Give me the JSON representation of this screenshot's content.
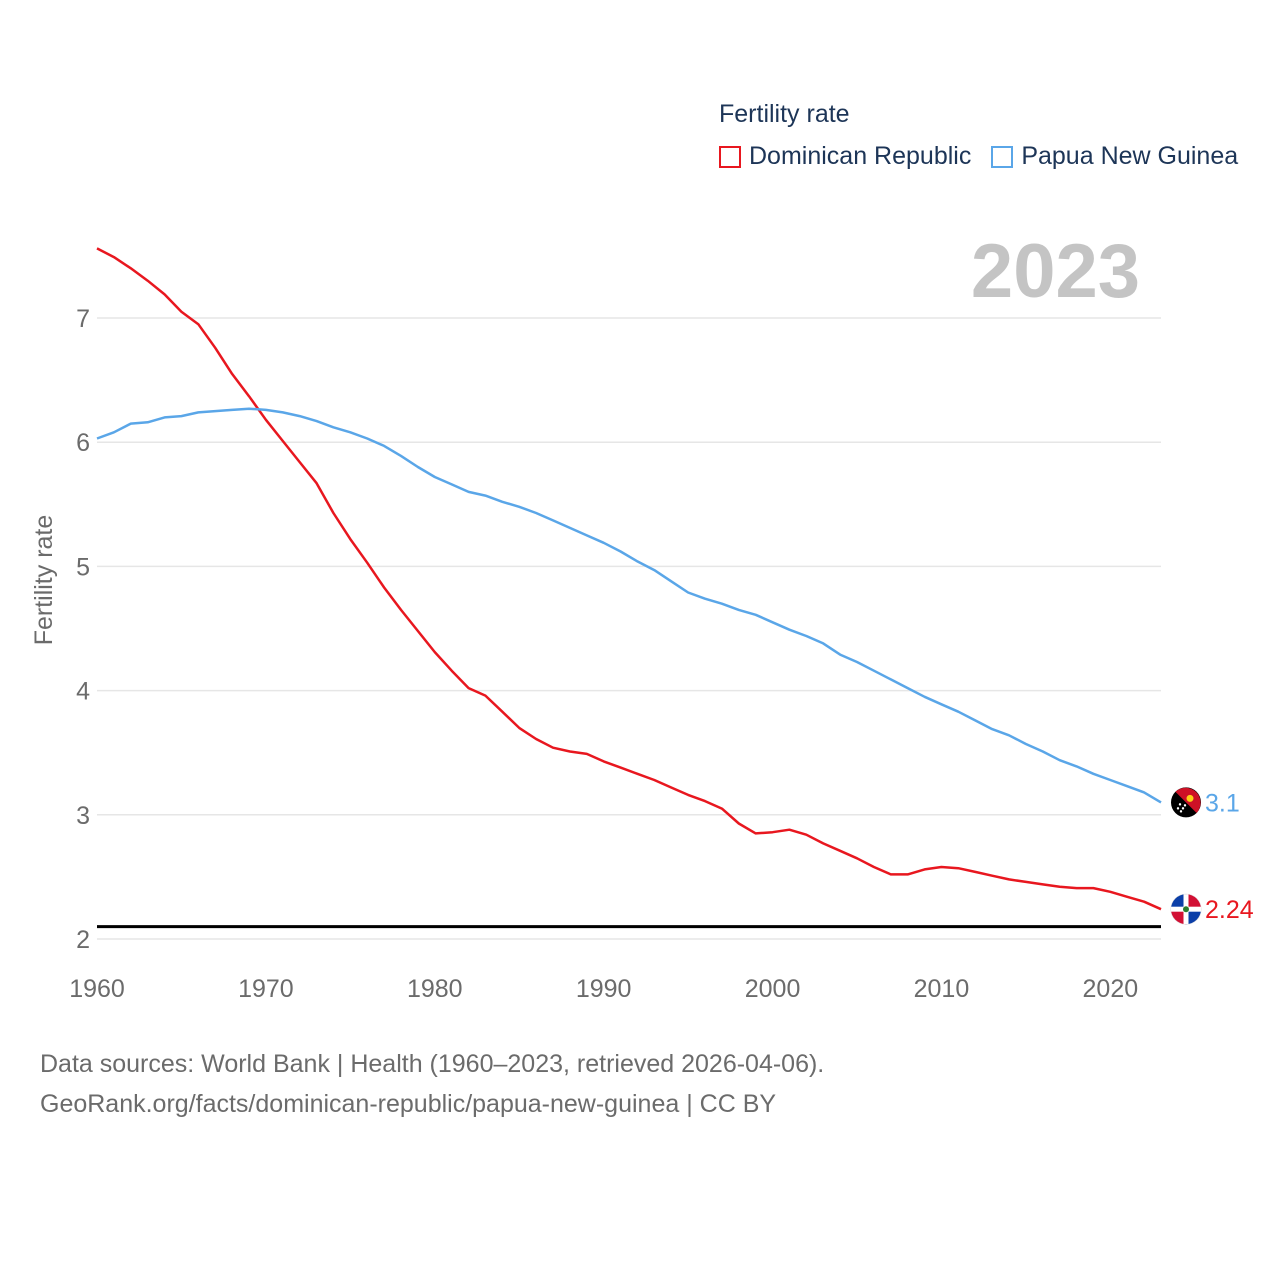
{
  "legend": {
    "title": "Fertility rate",
    "items": [
      {
        "label": "Dominican Republic",
        "color": "#e8171f"
      },
      {
        "label": "Papua New Guinea",
        "color": "#5aa6e8"
      }
    ]
  },
  "year_label": "2023",
  "source": {
    "line1": "Data sources: World Bank | Health (1960–2023, retrieved 2026-04-06).",
    "line2": "GeoRank.org/facts/dominican-republic/papua-new-guinea | CC BY"
  },
  "chart_data": {
    "type": "line",
    "title": "Fertility rate",
    "xlabel": "",
    "ylabel": "Fertility rate",
    "xlim": [
      1960,
      2023
    ],
    "ylim": [
      2,
      7.6
    ],
    "xticks": [
      1960,
      1970,
      1980,
      1990,
      2000,
      2010,
      2020
    ],
    "yticks": [
      2,
      3,
      4,
      5,
      6,
      7
    ],
    "reference_line": 2.1,
    "x": [
      1960,
      1961,
      1962,
      1963,
      1964,
      1965,
      1966,
      1967,
      1968,
      1969,
      1970,
      1971,
      1972,
      1973,
      1974,
      1975,
      1976,
      1977,
      1978,
      1979,
      1980,
      1981,
      1982,
      1983,
      1984,
      1985,
      1986,
      1987,
      1988,
      1989,
      1990,
      1991,
      1992,
      1993,
      1994,
      1995,
      1996,
      1997,
      1998,
      1999,
      2000,
      2001,
      2002,
      2003,
      2004,
      2005,
      2006,
      2007,
      2008,
      2009,
      2010,
      2011,
      2012,
      2013,
      2014,
      2015,
      2016,
      2017,
      2018,
      2019,
      2020,
      2021,
      2022,
      2023
    ],
    "series": [
      {
        "name": "Dominican Republic",
        "color": "#e8171f",
        "end_label": "2.24",
        "values": [
          7.56,
          7.49,
          7.4,
          7.3,
          7.19,
          7.05,
          6.95,
          6.76,
          6.55,
          6.37,
          6.18,
          6.01,
          5.84,
          5.67,
          5.43,
          5.22,
          5.03,
          4.83,
          4.65,
          4.48,
          4.31,
          4.16,
          4.02,
          3.96,
          3.83,
          3.7,
          3.61,
          3.54,
          3.51,
          3.49,
          3.43,
          3.38,
          3.33,
          3.28,
          3.22,
          3.16,
          3.11,
          3.05,
          2.93,
          2.85,
          2.86,
          2.88,
          2.84,
          2.77,
          2.71,
          2.65,
          2.58,
          2.52,
          2.52,
          2.56,
          2.58,
          2.57,
          2.54,
          2.51,
          2.48,
          2.46,
          2.44,
          2.42,
          2.41,
          2.41,
          2.38,
          2.34,
          2.3,
          2.24
        ]
      },
      {
        "name": "Papua New Guinea",
        "color": "#5aa6e8",
        "end_label": "3.1",
        "values": [
          6.03,
          6.08,
          6.15,
          6.16,
          6.2,
          6.21,
          6.24,
          6.25,
          6.26,
          6.27,
          6.26,
          6.24,
          6.21,
          6.17,
          6.12,
          6.08,
          6.03,
          5.97,
          5.89,
          5.8,
          5.72,
          5.66,
          5.6,
          5.57,
          5.52,
          5.48,
          5.43,
          5.37,
          5.31,
          5.25,
          5.19,
          5.12,
          5.04,
          4.97,
          4.88,
          4.79,
          4.74,
          4.7,
          4.65,
          4.61,
          4.55,
          4.49,
          4.44,
          4.38,
          4.29,
          4.23,
          4.16,
          4.09,
          4.02,
          3.95,
          3.89,
          3.83,
          3.76,
          3.69,
          3.64,
          3.57,
          3.51,
          3.44,
          3.39,
          3.33,
          3.28,
          3.23,
          3.18,
          3.1
        ]
      }
    ]
  }
}
